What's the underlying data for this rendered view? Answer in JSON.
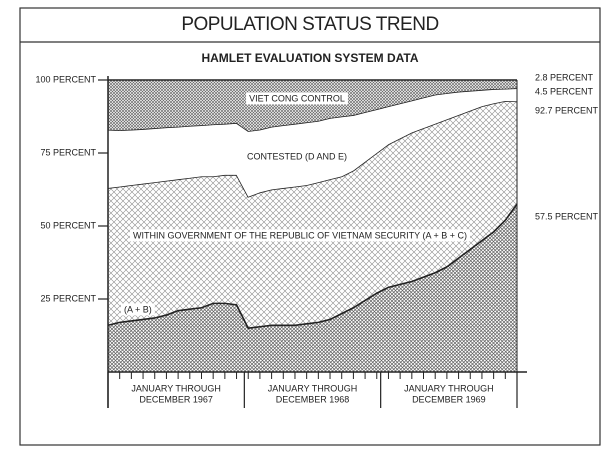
{
  "chart_data": {
    "type": "area",
    "title": "POPULATION STATUS TREND",
    "subtitle": "HAMLET EVALUATION SYSTEM DATA",
    "categories": [
      null,
      null,
      null,
      null,
      null,
      null,
      null,
      null,
      null,
      null,
      null,
      null,
      null,
      null,
      null,
      null,
      null,
      null,
      null,
      null,
      null,
      null,
      null,
      null,
      null,
      null,
      null,
      null,
      null,
      null,
      null,
      null,
      null,
      null,
      null,
      null
    ],
    "period_labels": [
      [
        "JANUARY THROUGH",
        "DECEMBER 1967"
      ],
      [
        "JANUARY THROUGH",
        "DECEMBER 1968"
      ],
      [
        "JANUARY THROUGH",
        "DECEMBER 1969"
      ]
    ],
    "ylim": [
      0,
      100
    ],
    "yticks": [
      {
        "value": 25,
        "label": "25 PERCENT"
      },
      {
        "value": 50,
        "label": "50 PERCENT"
      },
      {
        "value": 75,
        "label": "75 PERCENT"
      },
      {
        "value": 100,
        "label": "100 PERCENT"
      }
    ],
    "series": [
      {
        "name": "WITHIN GOVERNMENT OF THE REPUBLIC OF VIETNAM SECURITY (A + B + C)",
        "color": "#8c8c8c",
        "values": [
          63,
          63.5,
          64,
          64.5,
          65,
          65.5,
          66,
          66.5,
          67,
          67,
          67.5,
          67.5,
          60,
          61.5,
          62.5,
          63,
          63.5,
          64,
          65,
          66,
          67,
          69,
          72,
          75,
          78,
          80,
          82,
          83.5,
          85,
          86.5,
          88,
          89.5,
          91,
          92,
          92.8,
          92.7
        ],
        "value_labels": [
          null,
          null,
          null,
          null,
          null,
          null,
          null,
          null,
          null,
          null,
          null,
          null,
          null,
          null,
          null,
          null,
          null,
          null,
          null,
          null,
          null,
          null,
          null,
          null,
          null,
          null,
          null,
          null,
          null,
          null,
          null,
          null,
          null,
          null,
          null,
          "92.7 PERCENT"
        ]
      },
      {
        "name": "(A + B)",
        "color": "#5e5e5e",
        "values": [
          16,
          17,
          17.5,
          18,
          18.5,
          19.5,
          21,
          21.5,
          22,
          23.5,
          23.5,
          23,
          15,
          15.5,
          16,
          16,
          16,
          16.5,
          17,
          18,
          20,
          22,
          24.5,
          27,
          29,
          30,
          31,
          32.5,
          34,
          36,
          39,
          42,
          45,
          48,
          52,
          57.5
        ],
        "value_labels": [
          null,
          null,
          null,
          null,
          null,
          null,
          null,
          null,
          null,
          null,
          null,
          null,
          null,
          null,
          null,
          null,
          null,
          null,
          null,
          null,
          null,
          null,
          null,
          null,
          null,
          null,
          null,
          null,
          null,
          null,
          null,
          null,
          null,
          null,
          null,
          "57.5 PERCENT"
        ]
      },
      {
        "name": "CONTESTED (D AND E)",
        "color": "#ffffff",
        "values": [
          20,
          19.3,
          19,
          18.7,
          18.5,
          18.3,
          18,
          17.8,
          17.5,
          17.8,
          17.5,
          17.8,
          22.5,
          21.5,
          21.5,
          21.5,
          21.5,
          21.5,
          21,
          21,
          20.5,
          19,
          17,
          15,
          13,
          12,
          11,
          10.5,
          10,
          9,
          8,
          6.8,
          5.6,
          4.9,
          4.2,
          4.5
        ],
        "value_labels": [
          null,
          null,
          null,
          null,
          null,
          null,
          null,
          null,
          null,
          null,
          null,
          null,
          null,
          null,
          null,
          null,
          null,
          null,
          null,
          null,
          null,
          null,
          null,
          null,
          null,
          null,
          null,
          null,
          null,
          null,
          null,
          null,
          null,
          null,
          null,
          "4.5 PERCENT"
        ]
      },
      {
        "name": "VIET CONG CONTROL",
        "color": "#6a6a6a",
        "values": [
          17,
          17.2,
          17,
          16.8,
          16.5,
          16.2,
          16,
          15.7,
          15.5,
          15.2,
          15,
          14.7,
          17.5,
          17,
          16,
          15.5,
          15,
          14.5,
          14,
          13,
          12.5,
          12,
          11,
          10,
          9,
          8,
          7,
          6,
          5,
          4.5,
          4,
          3.7,
          3.4,
          3.1,
          3,
          2.8
        ],
        "value_labels": [
          null,
          null,
          null,
          null,
          null,
          null,
          null,
          null,
          null,
          null,
          null,
          null,
          null,
          null,
          null,
          null,
          null,
          null,
          null,
          null,
          null,
          null,
          null,
          null,
          null,
          null,
          null,
          null,
          null,
          null,
          null,
          null,
          null,
          null,
          null,
          "2.8 PERCENT"
        ]
      }
    ]
  }
}
